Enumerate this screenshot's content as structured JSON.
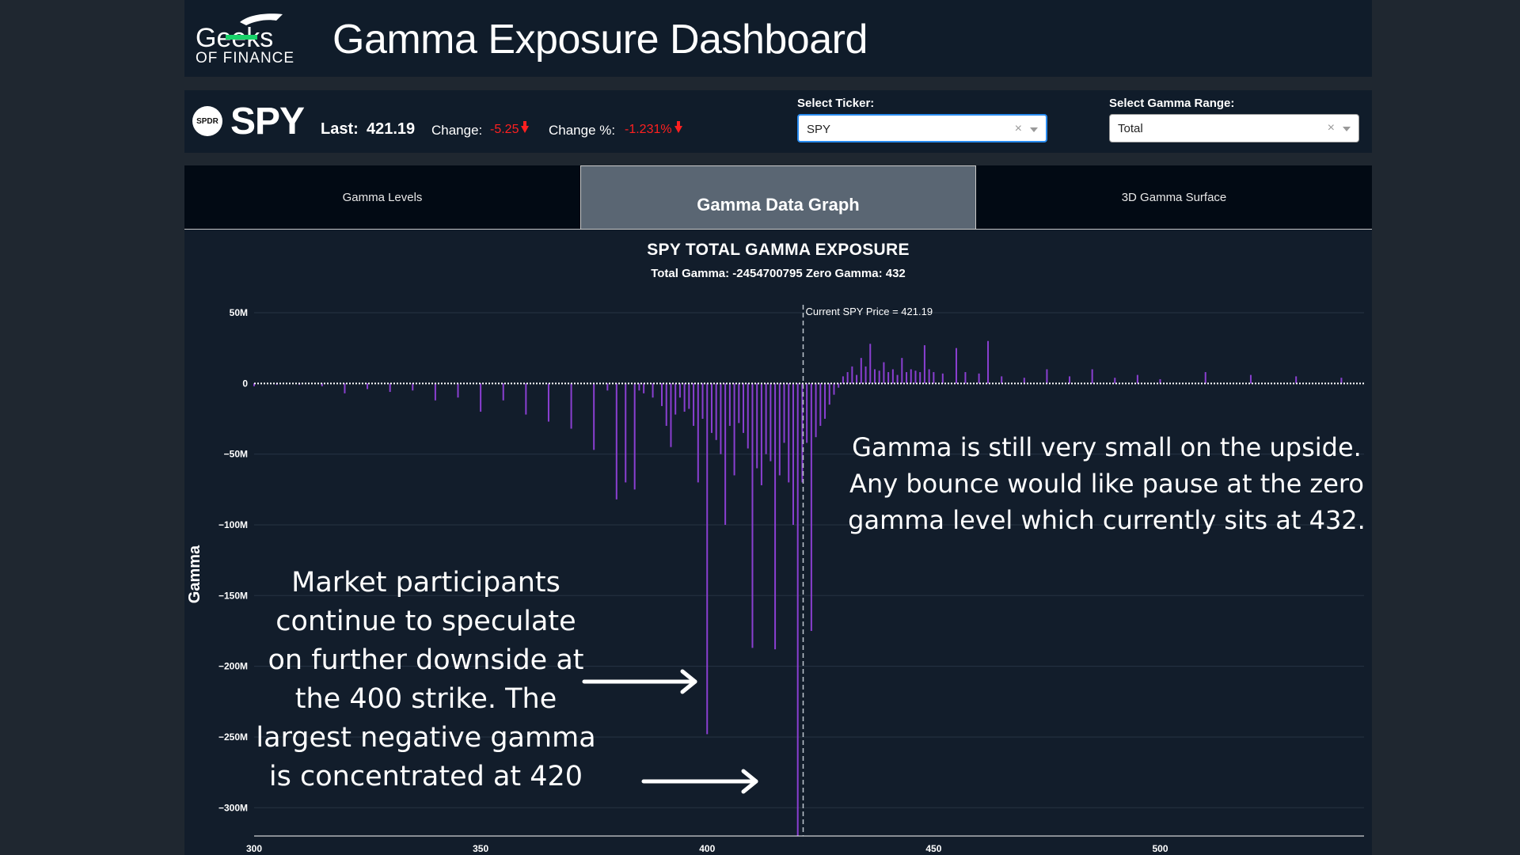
{
  "header": {
    "logo_line1": "Geeks",
    "logo_line2": "OF FINANCE",
    "title": "Gamma Exposure Dashboard"
  },
  "ticker": {
    "logo_text": "SPDR",
    "symbol": "SPY",
    "last_label": "Last:",
    "last_value": "421.19",
    "change_label": "Change:",
    "change_value": "-5.25",
    "change_pct_label": "Change %:",
    "change_pct_value": "-1.231%",
    "change_color": "#ff2020"
  },
  "controls": {
    "ticker_label": "Select Ticker:",
    "ticker_value": "SPY",
    "range_label": "Select Gamma Range:",
    "range_value": "Total",
    "clear_glyph": "×"
  },
  "tabs": [
    {
      "label": "Gamma Levels",
      "active": false
    },
    {
      "label": "Gamma Data Graph",
      "active": true
    },
    {
      "label": "3D Gamma Surface",
      "active": false
    }
  ],
  "chart_data": {
    "type": "bar",
    "title": "SPY TOTAL GAMMA EXPOSURE",
    "subtitle": "Total Gamma: -2454700795 Zero Gamma: 432",
    "xlabel": "",
    "ylabel": "Gamma",
    "xlim": [
      300,
      545
    ],
    "ylim": [
      -320000000,
      50000000
    ],
    "x_ticks": [
      300,
      350,
      400,
      450,
      500
    ],
    "y_ticks": [
      {
        "value": 50000000,
        "label": "50M"
      },
      {
        "value": 0,
        "label": "0"
      },
      {
        "value": -50000000,
        "label": "−50M"
      },
      {
        "value": -100000000,
        "label": "−100M"
      },
      {
        "value": -150000000,
        "label": "−150M"
      },
      {
        "value": -200000000,
        "label": "−200M"
      },
      {
        "value": -250000000,
        "label": "−250M"
      },
      {
        "value": -300000000,
        "label": "−300M"
      }
    ],
    "bar_color": "#8a3fd1",
    "current_price": 421.19,
    "current_price_label": "Current SPY Price = 421.19",
    "strikes": [
      300,
      305,
      310,
      315,
      320,
      325,
      330,
      335,
      340,
      345,
      350,
      355,
      360,
      365,
      370,
      375,
      378,
      380,
      382,
      384,
      385,
      386,
      388,
      390,
      391,
      392,
      393,
      394,
      395,
      396,
      397,
      398,
      399,
      400,
      401,
      402,
      403,
      404,
      405,
      406,
      407,
      408,
      409,
      410,
      411,
      412,
      413,
      414,
      415,
      416,
      417,
      418,
      419,
      420,
      421,
      422,
      423,
      424,
      425,
      426,
      427,
      428,
      429,
      430,
      431,
      432,
      433,
      434,
      435,
      436,
      437,
      438,
      439,
      440,
      441,
      442,
      443,
      444,
      445,
      446,
      447,
      448,
      449,
      450,
      452,
      455,
      457,
      460,
      462,
      465,
      470,
      475,
      480,
      485,
      490,
      495,
      500,
      510,
      520,
      530,
      540
    ],
    "values": [
      -2,
      -1,
      -1,
      -2,
      -7,
      -4,
      -6,
      -5,
      -12,
      -10,
      -20,
      -12,
      -22,
      -27,
      -32,
      -47,
      -5,
      -82,
      -70,
      -75,
      -5,
      -7,
      -10,
      -16,
      -30,
      -45,
      -22,
      -10,
      -20,
      -18,
      -30,
      -70,
      -25,
      -248,
      -35,
      -40,
      -50,
      -100,
      -30,
      -65,
      -28,
      -35,
      -46,
      -187,
      -60,
      -72,
      -50,
      -55,
      -188,
      -65,
      -42,
      -70,
      -100,
      -320,
      -70,
      -42,
      -175,
      -38,
      -30,
      -25,
      -15,
      -8,
      -3,
      5,
      8,
      12,
      6,
      18,
      12,
      28,
      10,
      9,
      15,
      8,
      10,
      6,
      18,
      8,
      10,
      9,
      8,
      27,
      10,
      8,
      7,
      25,
      8,
      7,
      30,
      5,
      4,
      10,
      5,
      10,
      4,
      6,
      3,
      8,
      6,
      5,
      4
    ]
  },
  "annotations": {
    "upside": "Gamma is still very small  on the upside. Any bounce would like pause at the zero gamma level which currently sits at 432.",
    "downside": "Market participants continue to speculate on further downside at the 400 strike. The largest negative gamma is concentrated at 420"
  }
}
